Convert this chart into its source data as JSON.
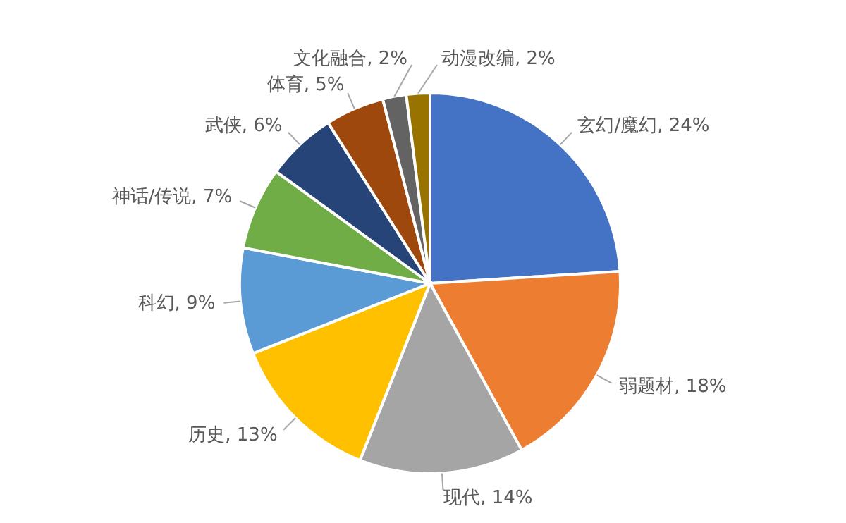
{
  "chart_data": {
    "type": "pie",
    "categories": [
      "玄幻/魔幻",
      "弱题材",
      "现代",
      "历史",
      "科幻",
      "神话/传说",
      "武侠",
      "体育",
      "文化融合",
      "动漫改编"
    ],
    "values": [
      24,
      18,
      14,
      13,
      9,
      7,
      6,
      5,
      2,
      2
    ],
    "value_labels": [
      "24%",
      "18%",
      "14%",
      "13%",
      "9%",
      "7%",
      "6%",
      "5%",
      "2%",
      "2%"
    ],
    "colors": [
      "#4472c4",
      "#ed7d31",
      "#a5a5a5",
      "#ffc000",
      "#5b9bd5",
      "#70ad47",
      "#264478",
      "#9e480e",
      "#636363",
      "#997300"
    ],
    "legend": false
  }
}
